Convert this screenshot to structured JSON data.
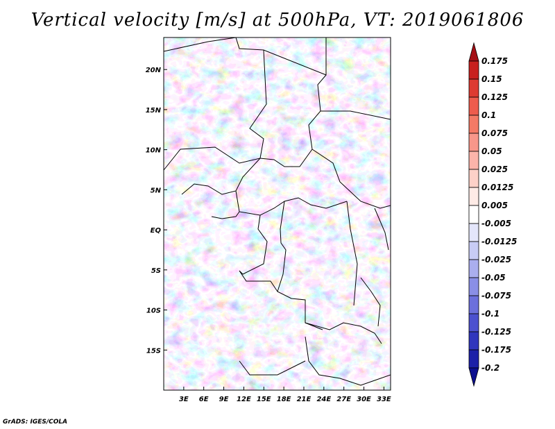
{
  "chart_data": {
    "type": "heatmap",
    "title": "Vertical velocity [m/s] at 500hPa, VT: 2019061806",
    "variable": "Vertical velocity",
    "units": "m/s",
    "level": "500hPa",
    "valid_time": "2019061806",
    "x_ticks": [
      "3E",
      "6E",
      "9E",
      "12E",
      "15E",
      "18E",
      "21E",
      "24E",
      "27E",
      "30E",
      "33E"
    ],
    "y_ticks": [
      "20N",
      "15N",
      "10N",
      "5N",
      "EQ",
      "5S",
      "10S",
      "15S"
    ],
    "lon_range": [
      0,
      34
    ],
    "lat_range": [
      -20,
      24
    ],
    "x_tick_values": [
      3,
      6,
      9,
      12,
      15,
      18,
      21,
      24,
      27,
      30,
      33
    ],
    "y_tick_values": [
      20,
      15,
      10,
      5,
      0,
      -5,
      -10,
      -15
    ],
    "colorbar": {
      "labels": [
        "0.175",
        "0.15",
        "0.125",
        "0.1",
        "0.075",
        "0.05",
        "0.025",
        "0.0125",
        "0.005",
        "-0.005",
        "-0.0125",
        "-0.025",
        "-0.05",
        "-0.075",
        "-0.1",
        "-0.125",
        "-0.175",
        "-0.2"
      ],
      "colors": [
        "#a50f15",
        "#c8201e",
        "#dd3b32",
        "#ee5c4d",
        "#f47a66",
        "#f8978a",
        "#fbb4aa",
        "#fdd1c8",
        "#feebe6",
        "#ffffff",
        "#e4e6fb",
        "#c8ccf5",
        "#aaaeee",
        "#8a8fe6",
        "#6c70dc",
        "#4c51cf",
        "#3036bd",
        "#1c20a8",
        "#0c0f8f"
      ],
      "extend": "both"
    },
    "description_fields": {
      "field_style": "noisy mesoscale pattern of upward (blue, negative) and downward (red, positive) motion"
    }
  },
  "credit": "GrADS: IGES/COLA"
}
